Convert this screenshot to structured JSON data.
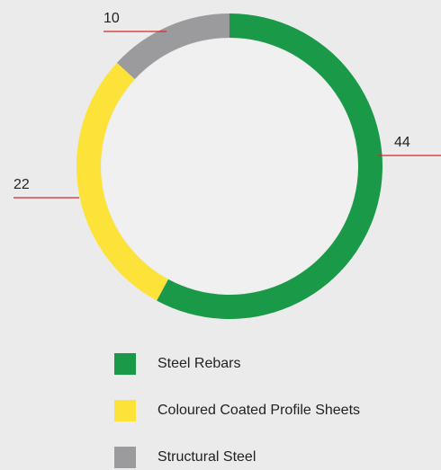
{
  "chart_data": {
    "type": "pie",
    "categories": [
      "Steel Rebars",
      "Coloured Coated Profile Sheets",
      "Structural Steel"
    ],
    "values": [
      44,
      22,
      10
    ],
    "colors": [
      "#1a9a48",
      "#fde23a",
      "#9b9b9d"
    ],
    "donut": true,
    "legend": "bottom"
  }
}
